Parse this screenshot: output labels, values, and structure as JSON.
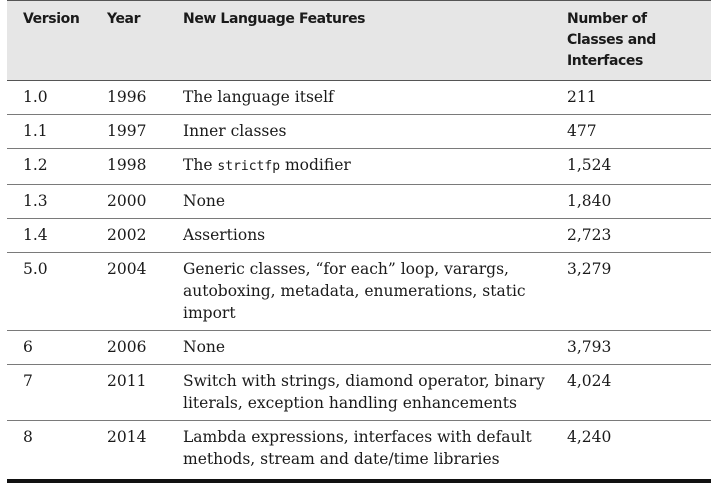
{
  "headers": {
    "version": "Version",
    "year": "Year",
    "features": "New Language Features",
    "count": "Number of Classes and Interfaces"
  },
  "rows": [
    {
      "version": "1.0",
      "year": "1996",
      "features_pre": "The language itself",
      "features_code": "",
      "features_post": "",
      "count": "211"
    },
    {
      "version": "1.1",
      "year": "1997",
      "features_pre": "Inner classes",
      "features_code": "",
      "features_post": "",
      "count": "477"
    },
    {
      "version": "1.2",
      "year": "1998",
      "features_pre": "The ",
      "features_code": "strictfp",
      "features_post": " modifier",
      "count": "1,524"
    },
    {
      "version": "1.3",
      "year": "2000",
      "features_pre": "None",
      "features_code": "",
      "features_post": "",
      "count": "1,840"
    },
    {
      "version": "1.4",
      "year": "2002",
      "features_pre": "Assertions",
      "features_code": "",
      "features_post": "",
      "count": "2,723"
    },
    {
      "version": "5.0",
      "year": "2004",
      "features_pre": "Generic classes, “for each” loop, varargs, autoboxing, metadata, enumerations, static import",
      "features_code": "",
      "features_post": "",
      "count": "3,279"
    },
    {
      "version": "6",
      "year": "2006",
      "features_pre": "None",
      "features_code": "",
      "features_post": "",
      "count": "3,793"
    },
    {
      "version": "7",
      "year": "2011",
      "features_pre": "Switch with strings, diamond operator, binary literals, exception handling enhancements",
      "features_code": "",
      "features_post": "",
      "count": "4,024"
    },
    {
      "version": "8",
      "year": "2014",
      "features_pre": "Lambda expressions, interfaces with default methods, stream and date/time libraries",
      "features_code": "",
      "features_post": "",
      "count": "4,240"
    }
  ]
}
